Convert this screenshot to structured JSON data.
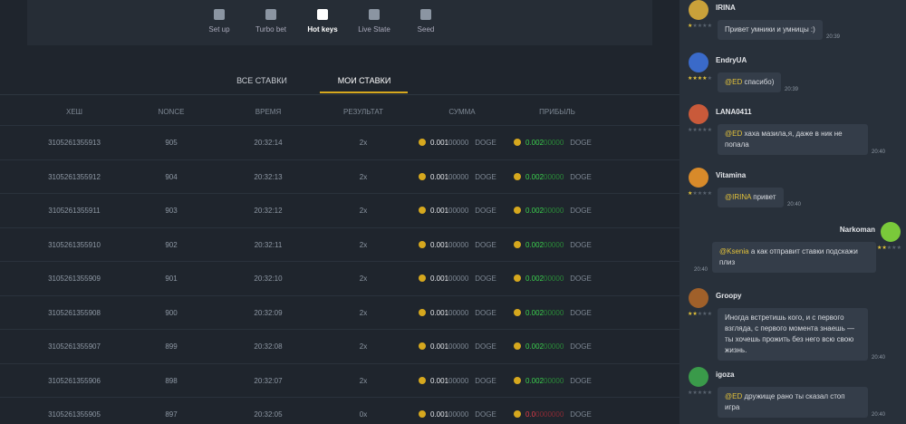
{
  "toolbar": {
    "items": [
      "Set up",
      "Turbo bet",
      "Hot keys",
      "Live State",
      "Seed"
    ],
    "active": 2
  },
  "tabs": {
    "items": [
      "ВСЕ СТАВКИ",
      "МОИ СТАВКИ"
    ],
    "active": 1
  },
  "table": {
    "headers": [
      "ХЕШ",
      "NONCE",
      "ВРЕМЯ",
      "РЕЗУЛЬТАТ",
      "СУММА",
      "ПРИБЫЛЬ"
    ],
    "rows": [
      {
        "hash": "3105261355913",
        "nonce": "905",
        "time": "20:32:14",
        "result": "2x",
        "amount": "0.001",
        "amount_rest": "00000",
        "currency": "DOGE",
        "profit": "0.002",
        "profit_rest": "00000",
        "profit_currency": "DOGE",
        "win": true
      },
      {
        "hash": "3105261355912",
        "nonce": "904",
        "time": "20:32:13",
        "result": "2x",
        "amount": "0.001",
        "amount_rest": "00000",
        "currency": "DOGE",
        "profit": "0.002",
        "profit_rest": "00000",
        "profit_currency": "DOGE",
        "win": true
      },
      {
        "hash": "3105261355911",
        "nonce": "903",
        "time": "20:32:12",
        "result": "2x",
        "amount": "0.001",
        "amount_rest": "00000",
        "currency": "DOGE",
        "profit": "0.002",
        "profit_rest": "00000",
        "profit_currency": "DOGE",
        "win": true
      },
      {
        "hash": "3105261355910",
        "nonce": "902",
        "time": "20:32:11",
        "result": "2x",
        "amount": "0.001",
        "amount_rest": "00000",
        "currency": "DOGE",
        "profit": "0.002",
        "profit_rest": "00000",
        "profit_currency": "DOGE",
        "win": true
      },
      {
        "hash": "3105261355909",
        "nonce": "901",
        "time": "20:32:10",
        "result": "2x",
        "amount": "0.001",
        "amount_rest": "00000",
        "currency": "DOGE",
        "profit": "0.002",
        "profit_rest": "00000",
        "profit_currency": "DOGE",
        "win": true
      },
      {
        "hash": "3105261355908",
        "nonce": "900",
        "time": "20:32:09",
        "result": "2x",
        "amount": "0.001",
        "amount_rest": "00000",
        "currency": "DOGE",
        "profit": "0.002",
        "profit_rest": "00000",
        "profit_currency": "DOGE",
        "win": true
      },
      {
        "hash": "3105261355907",
        "nonce": "899",
        "time": "20:32:08",
        "result": "2x",
        "amount": "0.001",
        "amount_rest": "00000",
        "currency": "DOGE",
        "profit": "0.002",
        "profit_rest": "00000",
        "profit_currency": "DOGE",
        "win": true
      },
      {
        "hash": "3105261355906",
        "nonce": "898",
        "time": "20:32:07",
        "result": "2x",
        "amount": "0.001",
        "amount_rest": "00000",
        "currency": "DOGE",
        "profit": "0.002",
        "profit_rest": "00000",
        "profit_currency": "DOGE",
        "win": true
      },
      {
        "hash": "3105261355905",
        "nonce": "897",
        "time": "20:32:05",
        "result": "0x",
        "amount": "0.001",
        "amount_rest": "00000",
        "currency": "DOGE",
        "profit": "0.0",
        "profit_rest": "0000000",
        "profit_currency": "DOGE",
        "win": false
      }
    ]
  },
  "chat": {
    "messages": [
      {
        "name": "IRINA",
        "stars": 1,
        "mention": "",
        "text": "Привет умники и умницы :)",
        "time": "20:39",
        "avatar": "#c9a13a",
        "own": false
      },
      {
        "name": "EndryUA",
        "stars": 4,
        "mention": "@ED",
        "text": " спасибо)",
        "time": "20:39",
        "avatar": "#3a6ac9",
        "own": false
      },
      {
        "name": "LANA0411",
        "stars": 0,
        "mention": "@ED",
        "text": " хаха мазила,я, даже в ник не попала",
        "time": "20:40",
        "avatar": "#c95a3a",
        "own": false
      },
      {
        "name": "Vitamina",
        "stars": 1,
        "mention": "@IRINA",
        "text": " привет",
        "time": "20:40",
        "avatar": "#d88a2a",
        "own": false
      },
      {
        "name": "Narkoman",
        "stars": 2,
        "mention": "@Ksenia",
        "text": " а как отправит ставки подскажи плиз",
        "time": "20:40",
        "avatar": "#7ac93a",
        "own": true
      },
      {
        "name": "Groopy",
        "stars": 2,
        "mention": "",
        "text": "Иногда встретишь кого, и с первого взгляда, с первого момента знаешь — ты хочешь прожить без него всю свою жизнь.",
        "time": "20:40",
        "avatar": "#a0602a",
        "own": false
      },
      {
        "name": "igoza",
        "stars": 0,
        "mention": "@ED",
        "text": " дружище рано ты сказал стоп игра",
        "time": "20:40",
        "avatar": "#3a9a4a",
        "own": false
      }
    ]
  }
}
